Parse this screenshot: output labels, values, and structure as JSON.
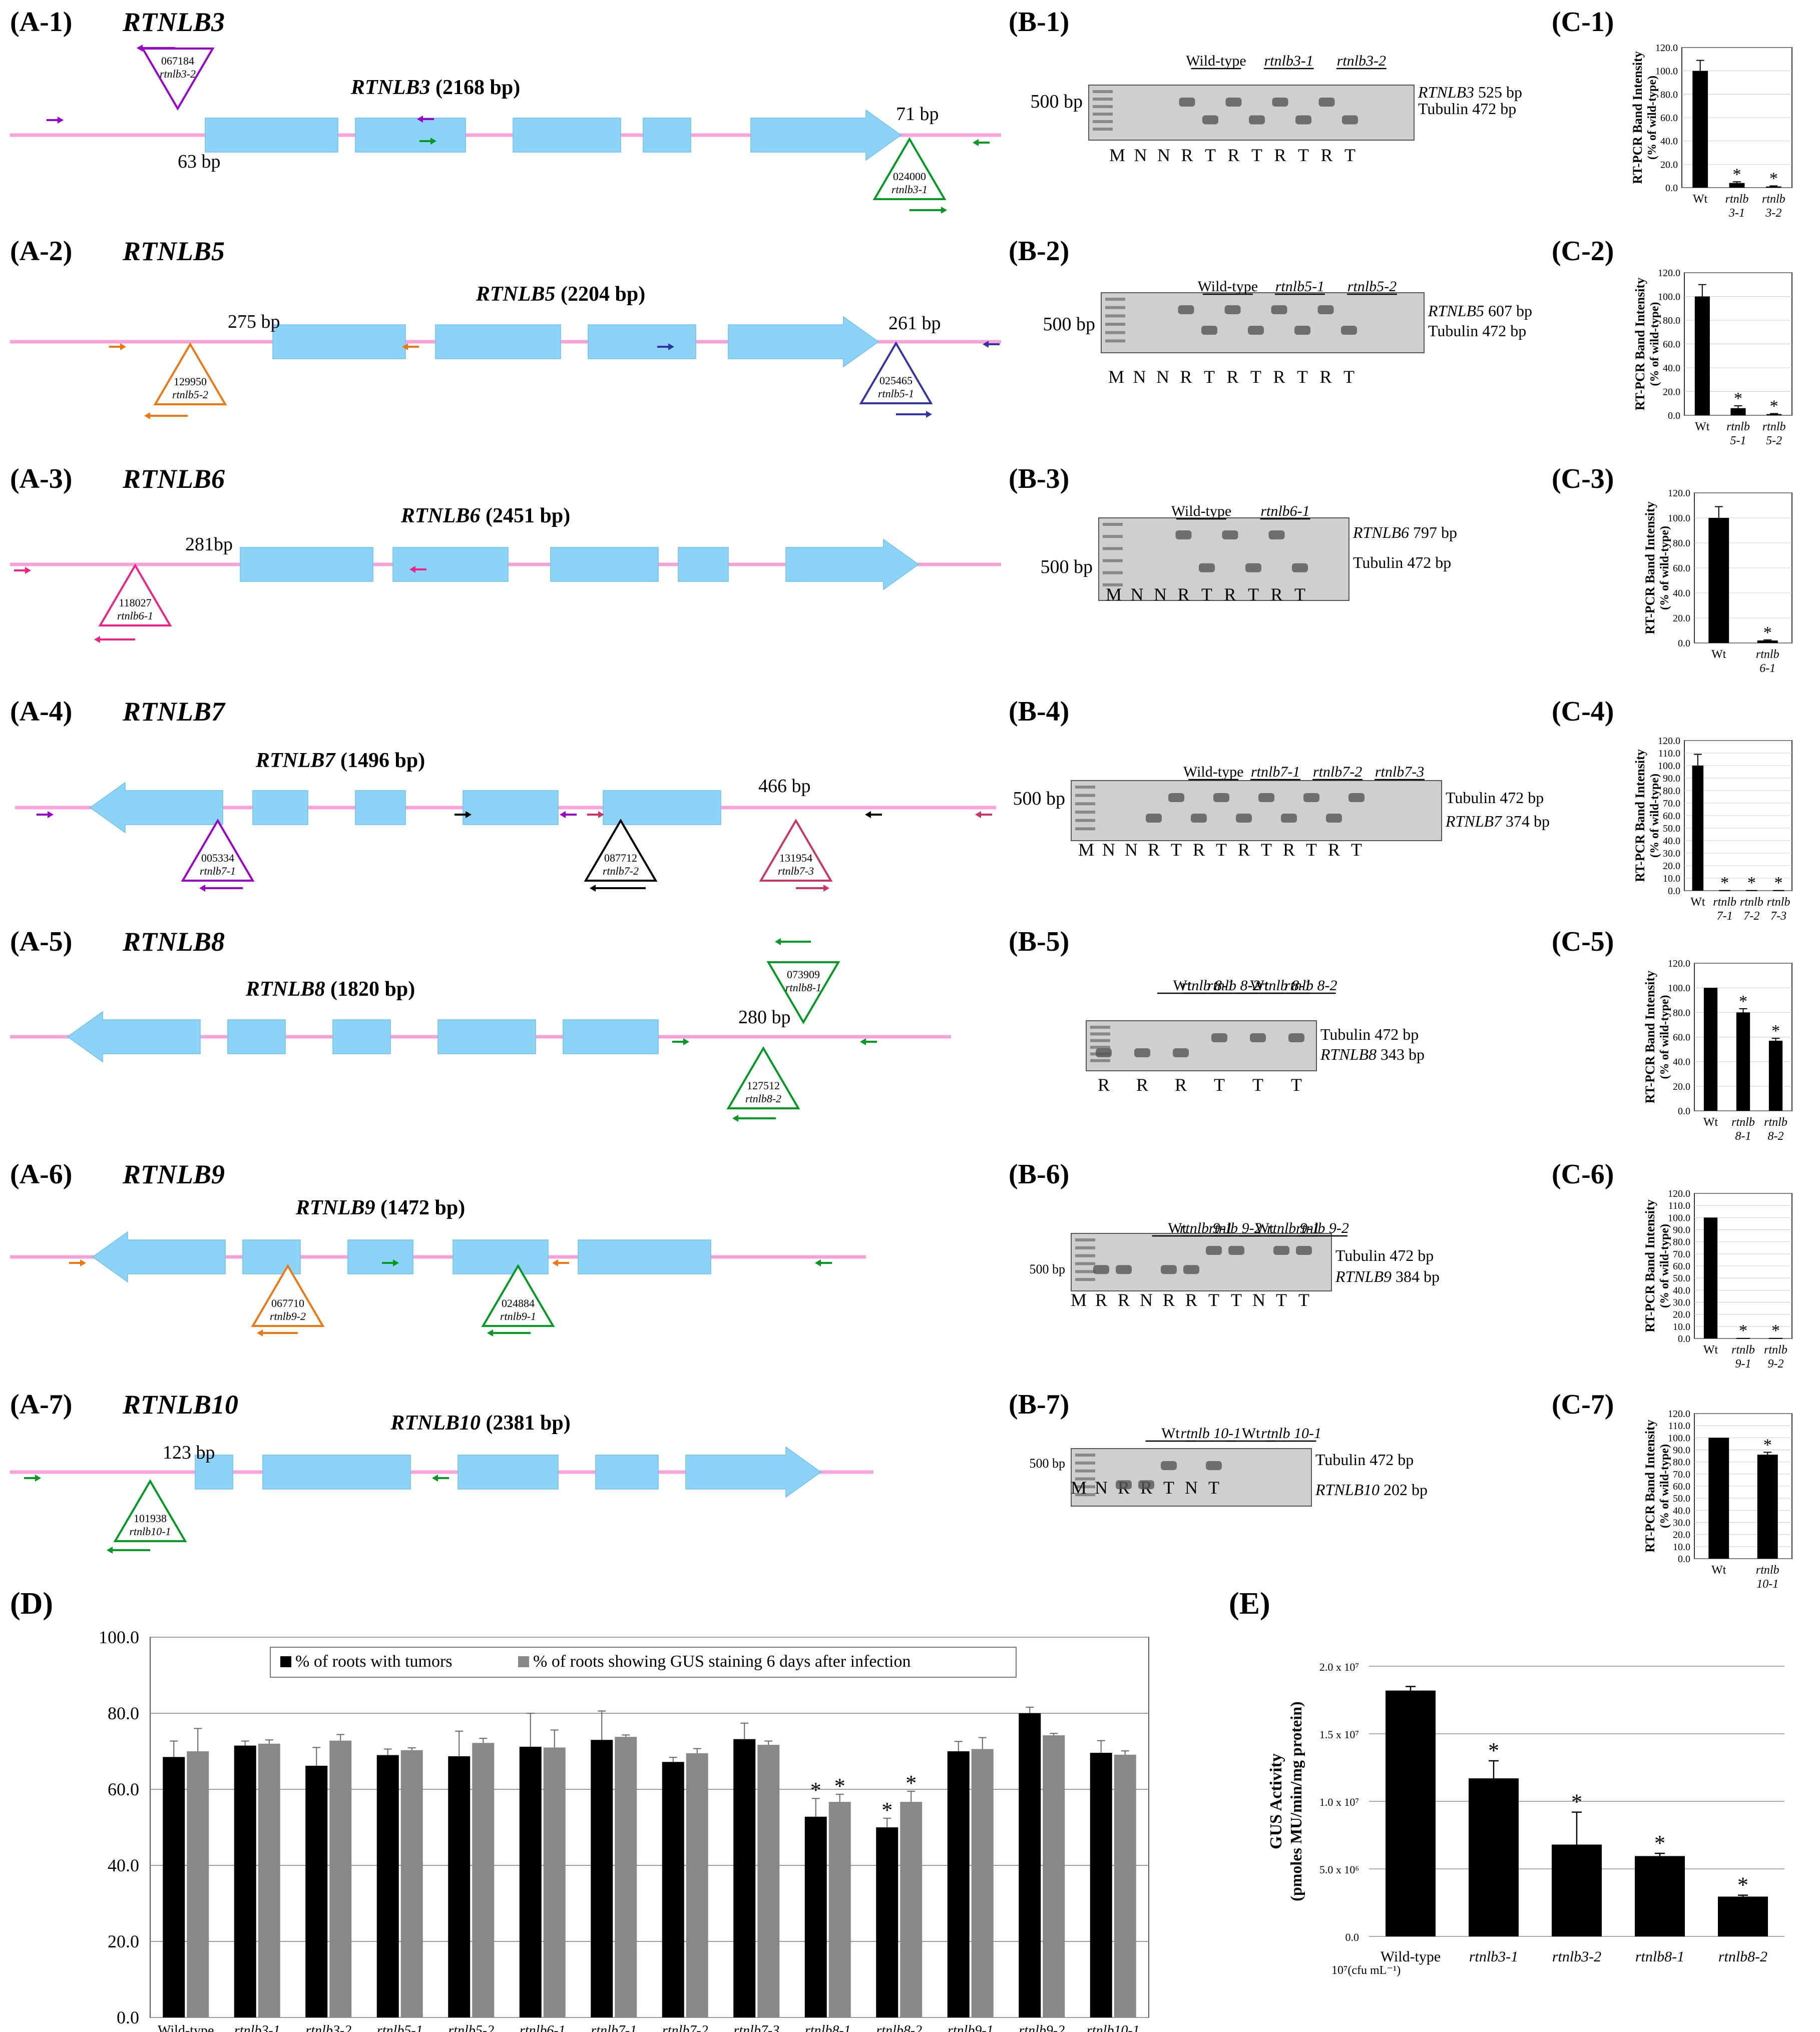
{
  "panels_a": [
    {
      "label": "(A-1)",
      "gene": "RTNLB3",
      "title_gene": "RTNLB3",
      "title_size": "(2168 bp)",
      "insertions": [
        {
          "id": "067184",
          "allele": "rtnlb3-2",
          "dist": "63 bp",
          "color": "#9900cc"
        },
        {
          "id": "024000",
          "allele": "rtnlb3-1",
          "dist": "71 bp",
          "color": "#009922"
        }
      ]
    },
    {
      "label": "(A-2)",
      "gene": "RTNLB5",
      "title_gene": "RTNLB5",
      "title_size": "(2204 bp)",
      "insertions": [
        {
          "id": "129950",
          "allele": "rtnlb5-2",
          "dist": "275 bp",
          "color": "#ee7711"
        },
        {
          "id": "025465",
          "allele": "rtnlb5-1",
          "dist": "261 bp",
          "color": "#3333aa"
        }
      ]
    },
    {
      "label": "(A-3)",
      "gene": "RTNLB6",
      "title_gene": "RTNLB6",
      "title_size": "(2451 bp)",
      "insertions": [
        {
          "id": "118027",
          "allele": "rtnlb6-1",
          "dist": "281bp",
          "color": "#ee2288"
        }
      ]
    },
    {
      "label": "(A-4)",
      "gene": "RTNLB7",
      "title_gene": "RTNLB7",
      "title_size": "(1496 bp)",
      "insertions": [
        {
          "id": "005334",
          "allele": "rtnlb7-1",
          "dist": "",
          "color": "#9900cc"
        },
        {
          "id": "087712",
          "allele": "rtnlb7-2",
          "dist": "",
          "color": "#000000"
        },
        {
          "id": "131954",
          "allele": "rtnlb7-3",
          "dist": "466 bp",
          "color": "#cc3366"
        }
      ]
    },
    {
      "label": "(A-5)",
      "gene": "RTNLB8",
      "title_gene": "RTNLB8",
      "title_size": "(1820 bp)",
      "insertions": [
        {
          "id": "073909",
          "allele": "rtnlb8-1",
          "dist": "",
          "color": "#009922"
        },
        {
          "id": "127512",
          "allele": "rtnlb8-2",
          "dist": "280 bp",
          "color": "#009922"
        }
      ]
    },
    {
      "label": "(A-6)",
      "gene": "RTNLB9",
      "title_gene": "RTNLB9",
      "title_size": "(1472 bp)",
      "insertions": [
        {
          "id": "067710",
          "allele": "rtnlb9-2",
          "dist": "",
          "color": "#ee7711"
        },
        {
          "id": "024884",
          "allele": "rtnlb9-1",
          "dist": "",
          "color": "#009922"
        }
      ]
    },
    {
      "label": "(A-7)",
      "gene": "RTNLB10",
      "title_gene": "RTNLB10",
      "title_size": "(2381 bp)",
      "insertions": [
        {
          "id": "101938",
          "allele": "rtnlb10-1",
          "dist": "123 bp",
          "color": "#009922"
        }
      ]
    }
  ],
  "panels_b": [
    {
      "label": "(B-1)",
      "marker": "500 bp",
      "groups": [
        "Wild-type",
        "rtnlb3-1",
        "rtnlb3-2"
      ],
      "lanes": [
        "M",
        "N",
        "N",
        "R",
        "T",
        "R",
        "T",
        "R",
        "T",
        "R",
        "T"
      ],
      "band1": "525 bp",
      "band1_gene": "RTNLB3",
      "band2": "Tubulin 472 bp"
    },
    {
      "label": "(B-2)",
      "marker": "500 bp",
      "groups": [
        "Wild-type",
        "rtnlb5-1",
        "rtnlb5-2"
      ],
      "lanes": [
        "M",
        "N",
        "N",
        "R",
        "T",
        "R",
        "T",
        "R",
        "T",
        "R",
        "T"
      ],
      "band1": "607 bp",
      "band1_gene": "RTNLB5",
      "band2": "Tubulin 472 bp"
    },
    {
      "label": "(B-3)",
      "marker": "500 bp",
      "groups": [
        "Wild-type",
        "rtnlb6-1"
      ],
      "lanes": [
        "M",
        "N",
        "N",
        "R",
        "T",
        "R",
        "T",
        "R",
        "T"
      ],
      "band1": "797 bp",
      "band1_gene": "RTNLB6",
      "band2": "Tubulin 472 bp"
    },
    {
      "label": "(B-4)",
      "marker": "500 bp",
      "groups": [
        "Wild-type",
        "rtnlb7-1",
        "rtnlb7-2",
        "rtnlb7-3"
      ],
      "lanes": [
        "M",
        "N",
        "N",
        "R",
        "T",
        "R",
        "T",
        "R",
        "T",
        "R",
        "T",
        "R",
        "T"
      ],
      "band1": "Tubulin 472 bp",
      "band1_gene": "",
      "band2": "374 bp",
      "band2_gene": "RTNLB7"
    },
    {
      "label": "(B-5)",
      "marker": "",
      "groups": [
        "Wt",
        "rtnlb 8-1",
        "rtnlb 8-2",
        "Wt",
        "rtnlb 8-1",
        "rtnlb 8-2"
      ],
      "lanes": [
        "R",
        "R",
        "R",
        "T",
        "T",
        "T"
      ],
      "band1": "Tubulin 472 bp",
      "band1_gene": "",
      "band2": "343 bp",
      "band2_gene": "RTNLB8"
    },
    {
      "label": "(B-6)",
      "marker": "500 bp",
      "groups": [
        "Wt",
        "rtnlb 9-1",
        "rtnlb 9-2",
        "Wt",
        "rtnlb 9-1",
        "rtnlb 9-2"
      ],
      "lanes": [
        "M",
        "R",
        "R",
        "N",
        "R",
        "R",
        "T",
        "T",
        "N",
        "T",
        "T"
      ],
      "band1": "Tubulin 472 bp",
      "band1_gene": "",
      "band2": "384 bp",
      "band2_gene": "RTNLB9"
    },
    {
      "label": "(B-7)",
      "marker": "500 bp",
      "groups": [
        "Wt",
        "rtnlb 10-1",
        "Wt",
        "rtnlb 10-1"
      ],
      "lanes": [
        "M",
        "N",
        "R",
        "R",
        "T",
        "N",
        "T"
      ],
      "band1": "Tubulin 472 bp",
      "band1_gene": "",
      "band2": "202 bp",
      "band2_gene": "RTNLB10"
    }
  ],
  "chart_data": [
    {
      "id": "C-1",
      "label": "(C-1)",
      "type": "bar",
      "ylabel": "RT-PCR Band Intensity",
      "ylabel2": "(% of wild-type)",
      "ylim": [
        0,
        120
      ],
      "ticks": [
        "0.0",
        "20.0",
        "40.0",
        "60.0",
        "80.0",
        "100.0",
        "120.0"
      ],
      "categories": [
        "Wt",
        "rtnlb 3-1",
        "rtnlb 3-2"
      ],
      "values": [
        100,
        4,
        1
      ],
      "errors": [
        9,
        1,
        0.5
      ],
      "stars": [
        false,
        true,
        true
      ]
    },
    {
      "id": "C-2",
      "label": "(C-2)",
      "type": "bar",
      "ylabel": "RT-PCR Band Intensity",
      "ylabel2": "(% of wild-type)",
      "ylim": [
        0,
        120
      ],
      "ticks": [
        "0.0",
        "20.0",
        "40.0",
        "60.0",
        "80.0",
        "100.0",
        "120.0"
      ],
      "categories": [
        "Wt",
        "rtnlb 5-1",
        "rtnlb 5-2"
      ],
      "values": [
        100,
        6,
        1
      ],
      "errors": [
        10,
        2,
        0.5
      ],
      "stars": [
        false,
        true,
        true
      ]
    },
    {
      "id": "C-3",
      "label": "(C-3)",
      "type": "bar",
      "ylabel": "RT-PCR Band Intensity",
      "ylabel2": "(% of wild-type)",
      "ylim": [
        0,
        120
      ],
      "ticks": [
        "0.0",
        "20.0",
        "40.0",
        "60.0",
        "80.0",
        "100.0",
        "120.0"
      ],
      "categories": [
        "Wt",
        "rtnlb 6-1"
      ],
      "values": [
        100,
        2
      ],
      "errors": [
        9,
        0.5
      ],
      "stars": [
        false,
        true
      ]
    },
    {
      "id": "C-4",
      "label": "(C-4)",
      "type": "bar",
      "ylabel": "RT-PCR Band Intensity",
      "ylabel2": "(% of wild-type)",
      "ylim": [
        0,
        120
      ],
      "ticks": [
        "0.0",
        "10.0",
        "20.0",
        "30.0",
        "40.0",
        "50.0",
        "60.0",
        "70.0",
        "80.0",
        "90.0",
        "100.0",
        "110.0",
        "120.0"
      ],
      "categories": [
        "Wt",
        "rtnlb 7-1",
        "rtnlb 7-2",
        "rtnlb 7-3"
      ],
      "values": [
        100,
        0.5,
        0.5,
        0.5
      ],
      "errors": [
        9,
        0,
        0,
        0
      ],
      "stars": [
        false,
        true,
        true,
        true
      ]
    },
    {
      "id": "C-5",
      "label": "(C-5)",
      "type": "bar",
      "ylabel": "RT-PCR Band Intensity",
      "ylabel2": "(% of wild-type)",
      "ylim": [
        0,
        120
      ],
      "ticks": [
        "0.0",
        "20.0",
        "40.0",
        "60.0",
        "80.0",
        "100.0",
        "120.0"
      ],
      "categories": [
        "Wt",
        "rtnlb 8-1",
        "rtnlb 8-2"
      ],
      "values": [
        100,
        80,
        57
      ],
      "errors": [
        0,
        3,
        2
      ],
      "stars": [
        false,
        true,
        true
      ]
    },
    {
      "id": "C-6",
      "label": "(C-6)",
      "type": "bar",
      "ylabel": "RT-PCR Band Intensity",
      "ylabel2": "(% of wild-type)",
      "ylim": [
        0,
        120
      ],
      "ticks": [
        "0.0",
        "10.0",
        "20.0",
        "30.0",
        "40.0",
        "50.0",
        "60.0",
        "70.0",
        "80.0",
        "90.0",
        "100.0",
        "110.0",
        "120.0"
      ],
      "categories": [
        "Wt",
        "rtnlb 9-1",
        "rtnlb 9-2"
      ],
      "values": [
        100,
        0.5,
        0.5
      ],
      "errors": [
        0,
        0,
        0
      ],
      "stars": [
        false,
        true,
        true
      ]
    },
    {
      "id": "C-7",
      "label": "(C-7)",
      "type": "bar",
      "ylabel": "RT-PCR Band Intensity",
      "ylabel2": "(% of wild-type)",
      "ylim": [
        0,
        120
      ],
      "ticks": [
        "0.0",
        "10.0",
        "20.0",
        "30.0",
        "40.0",
        "50.0",
        "60.0",
        "70.0",
        "80.0",
        "90.0",
        "100.0",
        "110.0",
        "120.0"
      ],
      "categories": [
        "Wt",
        "rtnlb 10-1"
      ],
      "values": [
        100,
        86
      ],
      "errors": [
        0,
        2
      ],
      "stars": [
        false,
        true
      ]
    },
    {
      "id": "D",
      "label": "(D)",
      "type": "bar",
      "ylim": [
        0,
        100
      ],
      "ticks": [
        "0.0",
        "20.0",
        "40.0",
        "60.0",
        "80.0",
        "100.0"
      ],
      "categories": [
        "Wild-type",
        "rtnlb3-1",
        "rtnlb3-2",
        "rtnlb5-1",
        "rtnlb5-2",
        "rtnlb6-1",
        "rtnlb7-1",
        "rtnlb7-2",
        "rtnlb7-3",
        "rtnlb8-1",
        "rtnlb8-2",
        "rtnlb9-1",
        "rtnlb9-2",
        "rtnlb10-1"
      ],
      "series": [
        {
          "name": "% of roots with tumors",
          "color": "#000000",
          "values": [
            68.5,
            71.5,
            66.2,
            69.0,
            68.7,
            71.2,
            73.0,
            67.2,
            73.2,
            52.8,
            50.0,
            70.0,
            80.0,
            69.6
          ],
          "errors": [
            4.2,
            1.2,
            4.8,
            1.6,
            6.6,
            8.8,
            7.6,
            1.2,
            4.2,
            4.8,
            2.4,
            2.6,
            1.6,
            3.2
          ],
          "stars": [
            false,
            false,
            false,
            false,
            false,
            false,
            false,
            false,
            false,
            true,
            true,
            false,
            false,
            false
          ]
        },
        {
          "name": "% of roots showing GUS staining 6 days after infection",
          "color": "#888888",
          "values": [
            70.0,
            72.0,
            72.8,
            70.3,
            72.2,
            71.0,
            73.8,
            69.5,
            71.7,
            56.7,
            56.7,
            70.6,
            74.2,
            69.1
          ],
          "errors": [
            6.0,
            1.0,
            1.6,
            0.6,
            1.2,
            4.6,
            0.5,
            1.2,
            1.0,
            2.0,
            2.8,
            3.0,
            0.5,
            1.0
          ],
          "stars": [
            false,
            false,
            false,
            false,
            false,
            false,
            false,
            false,
            false,
            true,
            true,
            false,
            false,
            false
          ]
        }
      ]
    },
    {
      "id": "E",
      "label": "(E)",
      "type": "bar",
      "ylabel": "GUS Activity",
      "ylabel2": "(pmoles MU/min/mg protein)",
      "ylim": [
        0,
        20000000
      ],
      "ticks": [
        "0.0",
        "5.0 x 10⁶",
        "1.0 x 10⁷",
        "1.5 x 10⁷",
        "2.0 x 10⁷"
      ],
      "categories": [
        "Wild-type",
        "rtnlb3-1",
        "rtnlb3-2",
        "rtnlb8-1",
        "rtnlb8-2"
      ],
      "values": [
        18200000,
        11700000,
        6800000,
        5950000,
        2950000
      ],
      "errors": [
        300000,
        1300000,
        2400000,
        200000,
        100000
      ],
      "stars": [
        false,
        true,
        true,
        true,
        true
      ],
      "note": "10⁷(cfu mL⁻¹)"
    }
  ]
}
